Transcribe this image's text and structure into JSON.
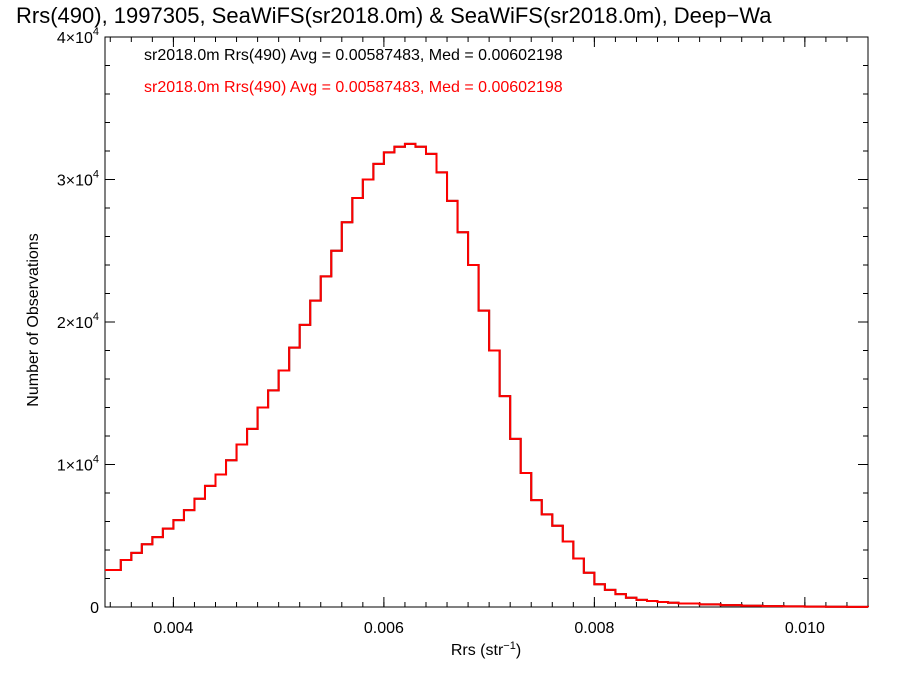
{
  "chart_data": {
    "type": "line",
    "title": "Rrs(490), 1997305, SeaWiFS(sr2018.0m) & SeaWiFS(sr2018.0m), Deep−Wa",
    "xlabel": "Rrs (str",
    "xlabel_sup": "−1",
    "xlabel_end": ")",
    "ylabel": "Number of Observations",
    "xlim": [
      0.00335,
      0.0106
    ],
    "ylim": [
      0,
      40000
    ],
    "x_ticks": [
      {
        "value": 0.004,
        "label": "0.004"
      },
      {
        "value": 0.006,
        "label": "0.006"
      },
      {
        "value": 0.008,
        "label": "0.008"
      },
      {
        "value": 0.01,
        "label": "0.010"
      }
    ],
    "y_ticks": [
      {
        "value": 0,
        "mant": "0",
        "exp": ""
      },
      {
        "value": 10000,
        "mant": "1×10",
        "exp": "4"
      },
      {
        "value": 20000,
        "mant": "2×10",
        "exp": "4"
      },
      {
        "value": 30000,
        "mant": "3×10",
        "exp": "4"
      },
      {
        "value": 40000,
        "mant": "4×10",
        "exp": "4"
      }
    ],
    "grid": false,
    "legend_position": "top-left",
    "series": [
      {
        "name": "sr2018.0m Rrs(490) Avg = 0.00587483, Med = 0.00602198",
        "color": "#000000",
        "x": [
          0.00335,
          0.0035,
          0.0036,
          0.0037,
          0.0038,
          0.0039,
          0.004,
          0.0041,
          0.0042,
          0.0043,
          0.0044,
          0.0045,
          0.0046,
          0.0047,
          0.0048,
          0.0049,
          0.005,
          0.0051,
          0.0052,
          0.0053,
          0.0054,
          0.0055,
          0.0056,
          0.0057,
          0.0058,
          0.0059,
          0.006,
          0.0061,
          0.0062,
          0.0063,
          0.0064,
          0.0065,
          0.0066,
          0.0067,
          0.0068,
          0.0069,
          0.007,
          0.0071,
          0.0072,
          0.0073,
          0.0074,
          0.0075,
          0.0076,
          0.0077,
          0.0078,
          0.0079,
          0.008,
          0.0081,
          0.0082,
          0.0083,
          0.0084,
          0.0085,
          0.0086,
          0.0087,
          0.0088,
          0.009,
          0.0092,
          0.0094,
          0.0096,
          0.0098,
          0.01,
          0.0102,
          0.0104,
          0.0106
        ],
        "y": [
          2600,
          3300,
          3800,
          4400,
          4900,
          5500,
          6100,
          6800,
          7600,
          8500,
          9300,
          10300,
          11400,
          12500,
          14000,
          15200,
          16600,
          18200,
          19800,
          21500,
          23200,
          25000,
          27000,
          28700,
          30000,
          31100,
          31900,
          32300,
          32500,
          32300,
          31800,
          30500,
          28500,
          26300,
          24000,
          20800,
          18000,
          14800,
          11800,
          9400,
          7500,
          6500,
          5700,
          4600,
          3400,
          2400,
          1600,
          1200,
          900,
          650,
          500,
          420,
          350,
          300,
          250,
          180,
          130,
          90,
          65,
          45,
          30,
          20,
          12,
          8
        ]
      },
      {
        "name": "sr2018.0m Rrs(490) Avg = 0.00587483, Med = 0.00602198",
        "color": "#ff0000",
        "x": [
          0.00335,
          0.0035,
          0.0036,
          0.0037,
          0.0038,
          0.0039,
          0.004,
          0.0041,
          0.0042,
          0.0043,
          0.0044,
          0.0045,
          0.0046,
          0.0047,
          0.0048,
          0.0049,
          0.005,
          0.0051,
          0.0052,
          0.0053,
          0.0054,
          0.0055,
          0.0056,
          0.0057,
          0.0058,
          0.0059,
          0.006,
          0.0061,
          0.0062,
          0.0063,
          0.0064,
          0.0065,
          0.0066,
          0.0067,
          0.0068,
          0.0069,
          0.007,
          0.0071,
          0.0072,
          0.0073,
          0.0074,
          0.0075,
          0.0076,
          0.0077,
          0.0078,
          0.0079,
          0.008,
          0.0081,
          0.0082,
          0.0083,
          0.0084,
          0.0085,
          0.0086,
          0.0087,
          0.0088,
          0.009,
          0.0092,
          0.0094,
          0.0096,
          0.0098,
          0.01,
          0.0102,
          0.0104,
          0.0106
        ],
        "y": [
          2600,
          3300,
          3800,
          4400,
          4900,
          5500,
          6100,
          6800,
          7600,
          8500,
          9300,
          10300,
          11400,
          12500,
          14000,
          15200,
          16600,
          18200,
          19800,
          21500,
          23200,
          25000,
          27000,
          28700,
          30000,
          31100,
          31900,
          32300,
          32500,
          32300,
          31800,
          30500,
          28500,
          26300,
          24000,
          20800,
          18000,
          14800,
          11800,
          9400,
          7500,
          6500,
          5700,
          4600,
          3400,
          2400,
          1600,
          1200,
          900,
          650,
          500,
          420,
          350,
          300,
          250,
          180,
          130,
          90,
          65,
          45,
          30,
          20,
          12,
          8
        ]
      }
    ]
  }
}
